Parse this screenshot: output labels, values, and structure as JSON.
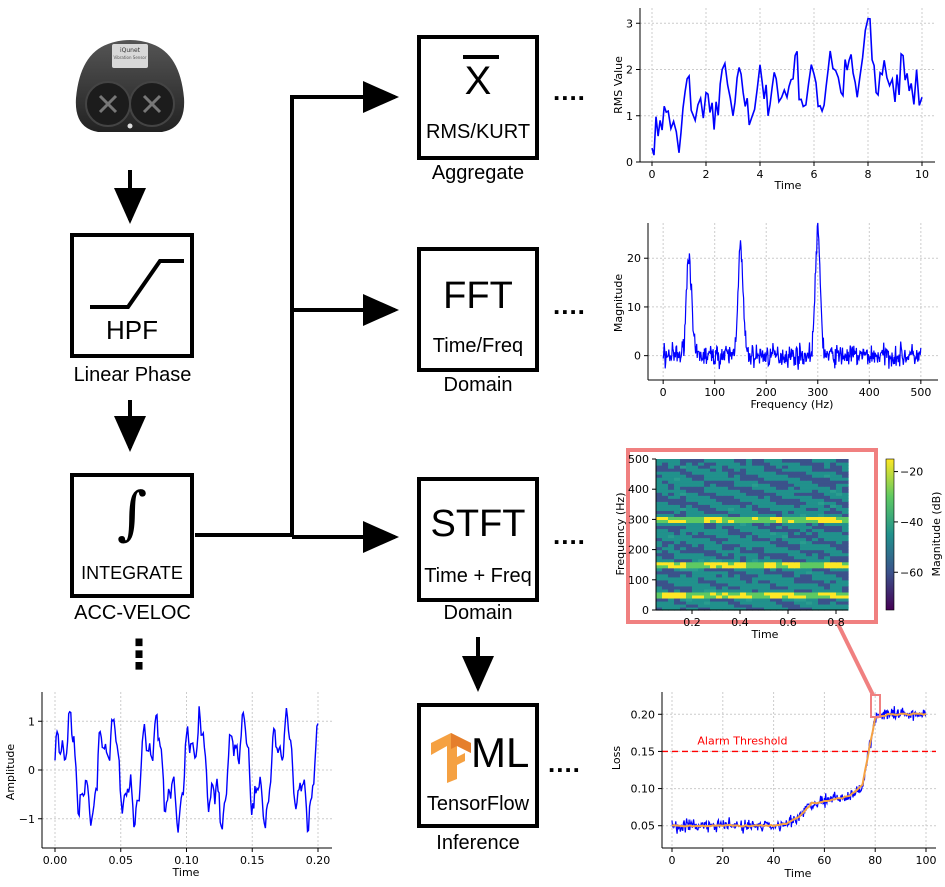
{
  "sensor": {
    "brand": "iQunet",
    "subtitle": "Vibration Sensor"
  },
  "blocks": {
    "hpf": {
      "label": "HPF",
      "caption": "Linear Phase"
    },
    "integrate": {
      "label": "INTEGRATE",
      "caption": "ACC-VELOC"
    },
    "aggregate": {
      "symbol": "X",
      "label": "RMS/KURT",
      "caption": "Aggregate"
    },
    "fft": {
      "symbol": "FFT",
      "label": "Time/Freq",
      "caption": "Domain"
    },
    "stft": {
      "symbol": "STFT",
      "label": "Time + Freq",
      "caption": "Domain"
    },
    "ml": {
      "symbol": "ML",
      "label": "TensorFlow",
      "caption": "Inference"
    }
  },
  "connector_dots": "....",
  "vertical_dots": "⋮",
  "charts": {
    "rms": {
      "ylabel": "RMS Value",
      "xlabel": "Time",
      "xticks": [
        "0",
        "2",
        "4",
        "6",
        "8",
        "10"
      ],
      "yticks": [
        "0",
        "1",
        "2",
        "3"
      ]
    },
    "fft": {
      "ylabel": "Magnitude",
      "xlabel": "Frequency (Hz)",
      "xticks": [
        "0",
        "100",
        "200",
        "300",
        "400",
        "500"
      ],
      "yticks": [
        "0",
        "10",
        "20"
      ]
    },
    "stft": {
      "ylabel": "Frequency (Hz)",
      "xlabel": "Time",
      "xticks": [
        "0.2",
        "0.4",
        "0.6",
        "0.8"
      ],
      "yticks": [
        "0",
        "100",
        "200",
        "300",
        "400",
        "500"
      ],
      "cbar_label": "Magnitude (dB)",
      "cbar_ticks": [
        "−20",
        "−40",
        "−60"
      ]
    },
    "loss": {
      "ylabel": "Loss",
      "xlabel": "Time",
      "xticks": [
        "0",
        "20",
        "40",
        "60",
        "80",
        "100"
      ],
      "yticks": [
        "0.05",
        "0.10",
        "0.15",
        "0.20"
      ],
      "threshold_label": "Alarm Threshold"
    },
    "amp": {
      "ylabel": "Amplitude",
      "xlabel": "Time",
      "xticks": [
        "0.00",
        "0.05",
        "0.10",
        "0.15",
        "0.20"
      ],
      "yticks": [
        "−1",
        "0",
        "1"
      ]
    }
  },
  "chart_data": [
    {
      "type": "line",
      "xlabel": "Time",
      "ylabel": "RMS Value",
      "xlim": [
        0,
        10
      ],
      "ylim": [
        0,
        3.2
      ],
      "grid": true,
      "series": [
        {
          "color": "#0000ff",
          "x": [
            0,
            0.3,
            0.6,
            1.0,
            1.3,
            1.6,
            2.0,
            2.3,
            2.6,
            3.0,
            3.3,
            3.6,
            4.0,
            4.3,
            4.6,
            5.0,
            5.3,
            5.6,
            6.0,
            6.3,
            6.6,
            7.0,
            7.3,
            7.6,
            8.0,
            8.3,
            8.6,
            9.0,
            9.3,
            9.6,
            10.0
          ],
          "values": [
            0.3,
            0.9,
            1.1,
            0.2,
            1.8,
            0.9,
            1.5,
            0.7,
            2.0,
            1.0,
            1.9,
            0.8,
            2.1,
            1.0,
            1.8,
            1.4,
            2.3,
            1.2,
            1.9,
            1.1,
            2.4,
            1.5,
            2.2,
            1.4,
            3.1,
            1.5,
            2.2,
            1.3,
            2.3,
            1.7,
            1.4
          ]
        }
      ]
    },
    {
      "type": "line",
      "xlabel": "Frequency (Hz)",
      "ylabel": "Magnitude",
      "xlim": [
        0,
        500
      ],
      "ylim": [
        -5,
        25
      ],
      "grid": true,
      "series": [
        {
          "color": "#0000ff",
          "peaks_hz": [
            50,
            150,
            300
          ],
          "peak_values": [
            21,
            22,
            25
          ]
        }
      ]
    },
    {
      "type": "heatmap",
      "xlabel": "Time",
      "ylabel": "Frequency (Hz)",
      "xlim": [
        0.05,
        0.85
      ],
      "ylim": [
        0,
        500
      ],
      "colorbar": {
        "label": "Magnitude (dB)",
        "range": [
          -75,
          -15
        ]
      },
      "bright_bands_hz": [
        50,
        150,
        300
      ]
    },
    {
      "type": "line",
      "xlabel": "Time",
      "ylabel": "Loss",
      "xlim": [
        0,
        100
      ],
      "ylim": [
        0.02,
        0.23
      ],
      "threshold": 0.15,
      "series": [
        {
          "color": "#0000ff",
          "role": "raw",
          "x": [
            0,
            10,
            20,
            30,
            40,
            45,
            50,
            55,
            60,
            65,
            70,
            75,
            78,
            80,
            85,
            90,
            95,
            100
          ],
          "values": [
            0.05,
            0.05,
            0.05,
            0.05,
            0.05,
            0.052,
            0.062,
            0.08,
            0.083,
            0.086,
            0.09,
            0.105,
            0.16,
            0.195,
            0.2,
            0.2,
            0.2,
            0.2
          ]
        },
        {
          "color": "#f5a142",
          "role": "smoothed",
          "x": [
            0,
            10,
            20,
            30,
            40,
            45,
            50,
            55,
            60,
            65,
            70,
            75,
            78,
            80,
            85,
            90,
            95,
            100
          ],
          "values": [
            0.05,
            0.05,
            0.05,
            0.05,
            0.05,
            0.052,
            0.062,
            0.08,
            0.083,
            0.086,
            0.09,
            0.105,
            0.16,
            0.195,
            0.2,
            0.2,
            0.2,
            0.2
          ]
        }
      ]
    },
    {
      "type": "line",
      "xlabel": "Time",
      "ylabel": "Amplitude",
      "xlim": [
        0,
        0.2
      ],
      "ylim": [
        -1.6,
        1.6
      ],
      "grid": true,
      "series": [
        {
          "color": "#0000ff",
          "fundamental_period": 0.033
        }
      ]
    }
  ]
}
